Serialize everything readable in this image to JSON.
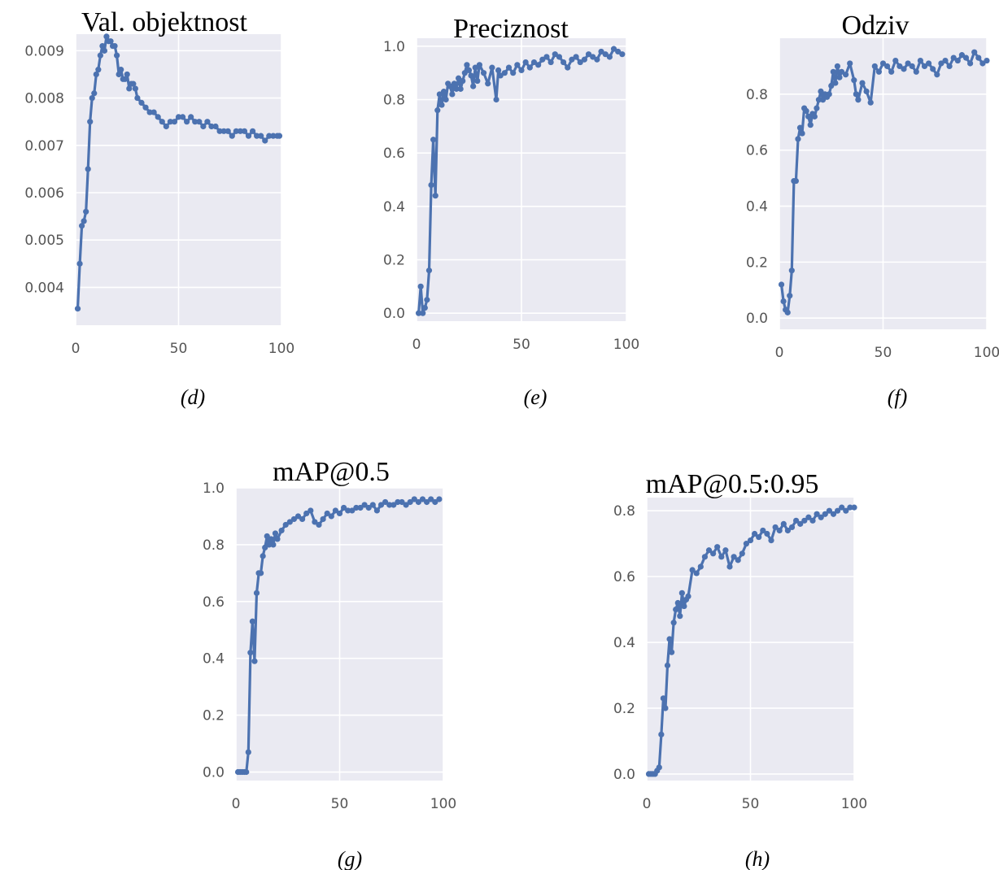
{
  "chart_data": [
    {
      "type": "line",
      "title": "Val. objektnost",
      "caption": "(d)",
      "xlim": [
        0,
        100
      ],
      "ylim": [
        0.0032,
        0.00935
      ],
      "xticks": [
        0,
        50,
        100
      ],
      "xtick_labels": [
        "0",
        "50",
        "100"
      ],
      "yticks": [
        0.004,
        0.005,
        0.006,
        0.007,
        0.008,
        0.009
      ],
      "ytick_labels": [
        "0.004",
        "0.005",
        "0.006",
        "0.007",
        "0.008",
        "0.009"
      ],
      "grid": true,
      "color": "#4c72b0",
      "series": [
        {
          "x": [
            1,
            2,
            3,
            4,
            5,
            6,
            7,
            8,
            9,
            10,
            11,
            12,
            13,
            14,
            15,
            16,
            17,
            18,
            19,
            20,
            21,
            22,
            23,
            24,
            25,
            26,
            27,
            28,
            29,
            30,
            32,
            34,
            36,
            38,
            40,
            42,
            44,
            46,
            48,
            50,
            52,
            54,
            56,
            58,
            60,
            62,
            64,
            66,
            68,
            70,
            72,
            74,
            76,
            78,
            80,
            82,
            84,
            86,
            88,
            90,
            92,
            94,
            96,
            98,
            99
          ],
          "y": [
            0.00355,
            0.0045,
            0.0053,
            0.0054,
            0.0056,
            0.0065,
            0.0075,
            0.008,
            0.0081,
            0.0085,
            0.0086,
            0.0089,
            0.0091,
            0.009,
            0.0093,
            0.0092,
            0.0092,
            0.0091,
            0.0091,
            0.0089,
            0.0085,
            0.0086,
            0.0084,
            0.0084,
            0.0085,
            0.0082,
            0.0083,
            0.0083,
            0.0082,
            0.008,
            0.0079,
            0.0078,
            0.0077,
            0.0077,
            0.0076,
            0.0075,
            0.0074,
            0.0075,
            0.0075,
            0.0076,
            0.0076,
            0.0075,
            0.0076,
            0.0075,
            0.0075,
            0.0074,
            0.0075,
            0.0074,
            0.0074,
            0.0073,
            0.0073,
            0.0073,
            0.0072,
            0.0073,
            0.0073,
            0.0073,
            0.0072,
            0.0073,
            0.0072,
            0.0072,
            0.0071,
            0.0072,
            0.0072,
            0.0072,
            0.0072
          ]
        }
      ]
    },
    {
      "type": "line",
      "title": "Preciznost",
      "caption": "(e)",
      "xlim": [
        0,
        100
      ],
      "ylim": [
        -0.03,
        1.03
      ],
      "xticks": [
        0,
        50,
        100
      ],
      "xtick_labels": [
        "0",
        "50",
        "100"
      ],
      "yticks": [
        0,
        0.2,
        0.4,
        0.6,
        0.8,
        1.0
      ],
      "ytick_labels": [
        "0.0",
        "0.2",
        "0.4",
        "0.6",
        "0.8",
        "1.0"
      ],
      "grid": true,
      "color": "#4c72b0",
      "series": [
        {
          "x": [
            1,
            2,
            3,
            4,
            5,
            6,
            7,
            8,
            9,
            10,
            11,
            12,
            13,
            14,
            15,
            16,
            17,
            18,
            19,
            20,
            21,
            22,
            23,
            24,
            25,
            26,
            27,
            28,
            29,
            30,
            32,
            34,
            36,
            38,
            39,
            40,
            42,
            44,
            46,
            48,
            50,
            52,
            54,
            56,
            58,
            60,
            62,
            64,
            66,
            68,
            70,
            72,
            74,
            76,
            78,
            80,
            82,
            84,
            86,
            88,
            90,
            92,
            94,
            96,
            98
          ],
          "y": [
            0.0,
            0.1,
            0.0,
            0.02,
            0.05,
            0.16,
            0.48,
            0.65,
            0.44,
            0.76,
            0.82,
            0.78,
            0.83,
            0.8,
            0.86,
            0.85,
            0.82,
            0.86,
            0.84,
            0.88,
            0.84,
            0.87,
            0.9,
            0.93,
            0.91,
            0.89,
            0.85,
            0.92,
            0.87,
            0.93,
            0.9,
            0.86,
            0.92,
            0.8,
            0.91,
            0.89,
            0.9,
            0.92,
            0.9,
            0.93,
            0.91,
            0.94,
            0.92,
            0.94,
            0.93,
            0.95,
            0.96,
            0.94,
            0.97,
            0.96,
            0.94,
            0.92,
            0.95,
            0.96,
            0.94,
            0.95,
            0.97,
            0.96,
            0.95,
            0.98,
            0.97,
            0.96,
            0.99,
            0.98,
            0.97
          ]
        }
      ]
    },
    {
      "type": "line",
      "title": "Odziv",
      "caption": "(f)",
      "xlim": [
        0,
        100
      ],
      "ylim": [
        -0.04,
        1.0
      ],
      "xticks": [
        0,
        50,
        100
      ],
      "xtick_labels": [
        "0",
        "50",
        "100"
      ],
      "yticks": [
        0,
        0.2,
        0.4,
        0.6,
        0.8
      ],
      "ytick_labels": [
        "0.0",
        "0.2",
        "0.4",
        "0.6",
        "0.8"
      ],
      "grid": true,
      "color": "#4c72b0",
      "series": [
        {
          "x": [
            1,
            2,
            3,
            4,
            5,
            6,
            7,
            8,
            9,
            10,
            11,
            12,
            13,
            14,
            15,
            16,
            17,
            18,
            19,
            20,
            21,
            22,
            23,
            24,
            25,
            26,
            27,
            28,
            29,
            30,
            32,
            34,
            36,
            37,
            38,
            40,
            42,
            44,
            46,
            48,
            50,
            52,
            54,
            56,
            58,
            60,
            62,
            64,
            66,
            68,
            70,
            72,
            74,
            76,
            78,
            80,
            82,
            84,
            86,
            88,
            90,
            92,
            94,
            96,
            98,
            100
          ],
          "y": [
            0.12,
            0.06,
            0.03,
            0.02,
            0.08,
            0.17,
            0.49,
            0.49,
            0.64,
            0.68,
            0.66,
            0.75,
            0.74,
            0.72,
            0.69,
            0.73,
            0.72,
            0.75,
            0.78,
            0.81,
            0.78,
            0.8,
            0.79,
            0.8,
            0.83,
            0.88,
            0.84,
            0.9,
            0.86,
            0.88,
            0.87,
            0.91,
            0.85,
            0.8,
            0.78,
            0.84,
            0.81,
            0.77,
            0.9,
            0.88,
            0.91,
            0.9,
            0.88,
            0.92,
            0.9,
            0.89,
            0.91,
            0.9,
            0.88,
            0.92,
            0.9,
            0.91,
            0.89,
            0.87,
            0.91,
            0.92,
            0.9,
            0.93,
            0.92,
            0.94,
            0.93,
            0.91,
            0.95,
            0.93,
            0.91,
            0.92
          ]
        }
      ]
    },
    {
      "type": "line",
      "title": "mAP@0.5",
      "caption": "(g)",
      "xlim": [
        0,
        100
      ],
      "ylim": [
        -0.03,
        1.0
      ],
      "xticks": [
        0,
        50,
        100
      ],
      "xtick_labels": [
        "0",
        "50",
        "100"
      ],
      "yticks": [
        0,
        0.2,
        0.4,
        0.6,
        0.8,
        1.0
      ],
      "ytick_labels": [
        "0.0",
        "0.2",
        "0.4",
        "0.6",
        "0.8",
        "1.0"
      ],
      "grid": true,
      "color": "#4c72b0",
      "series": [
        {
          "x": [
            1,
            2,
            3,
            4,
            5,
            6,
            7,
            8,
            9,
            10,
            11,
            12,
            13,
            14,
            15,
            16,
            17,
            18,
            19,
            20,
            22,
            24,
            26,
            28,
            30,
            32,
            34,
            36,
            38,
            40,
            42,
            44,
            46,
            48,
            50,
            52,
            54,
            56,
            58,
            60,
            62,
            64,
            66,
            68,
            70,
            72,
            74,
            76,
            78,
            80,
            82,
            84,
            86,
            88,
            90,
            92,
            94,
            96,
            98
          ],
          "y": [
            0.0,
            0.0,
            0.0,
            0.0,
            0.0,
            0.07,
            0.42,
            0.53,
            0.39,
            0.63,
            0.7,
            0.7,
            0.76,
            0.79,
            0.83,
            0.8,
            0.82,
            0.8,
            0.84,
            0.82,
            0.85,
            0.87,
            0.88,
            0.89,
            0.9,
            0.89,
            0.91,
            0.92,
            0.88,
            0.87,
            0.89,
            0.91,
            0.9,
            0.92,
            0.91,
            0.93,
            0.92,
            0.92,
            0.93,
            0.93,
            0.94,
            0.93,
            0.94,
            0.92,
            0.94,
            0.95,
            0.94,
            0.94,
            0.95,
            0.95,
            0.94,
            0.95,
            0.96,
            0.95,
            0.96,
            0.95,
            0.96,
            0.95,
            0.96
          ]
        }
      ]
    },
    {
      "type": "line",
      "title": "mAP@0.5:0.95",
      "caption": "(h)",
      "xlim": [
        0,
        100
      ],
      "ylim": [
        -0.02,
        0.84
      ],
      "xticks": [
        0,
        50,
        100
      ],
      "xtick_labels": [
        "0",
        "50",
        "100"
      ],
      "yticks": [
        0,
        0.2,
        0.4,
        0.6,
        0.8
      ],
      "ytick_labels": [
        "0.0",
        "0.2",
        "0.4",
        "0.6",
        "0.8"
      ],
      "grid": true,
      "color": "#4c72b0",
      "series": [
        {
          "x": [
            1,
            2,
            3,
            4,
            5,
            6,
            7,
            8,
            9,
            10,
            11,
            12,
            13,
            14,
            15,
            16,
            17,
            18,
            19,
            20,
            22,
            24,
            26,
            28,
            30,
            32,
            34,
            36,
            38,
            40,
            42,
            44,
            46,
            48,
            50,
            52,
            54,
            56,
            58,
            60,
            62,
            64,
            66,
            68,
            70,
            72,
            74,
            76,
            78,
            80,
            82,
            84,
            86,
            88,
            90,
            92,
            94,
            96,
            98,
            100
          ],
          "y": [
            0.0,
            0.0,
            0.0,
            0.0,
            0.01,
            0.02,
            0.12,
            0.23,
            0.2,
            0.33,
            0.41,
            0.37,
            0.46,
            0.5,
            0.52,
            0.48,
            0.55,
            0.51,
            0.53,
            0.54,
            0.62,
            0.61,
            0.63,
            0.66,
            0.68,
            0.67,
            0.69,
            0.66,
            0.68,
            0.63,
            0.66,
            0.65,
            0.67,
            0.7,
            0.71,
            0.73,
            0.72,
            0.74,
            0.73,
            0.71,
            0.75,
            0.74,
            0.76,
            0.74,
            0.75,
            0.77,
            0.76,
            0.77,
            0.78,
            0.77,
            0.79,
            0.78,
            0.79,
            0.8,
            0.79,
            0.8,
            0.81,
            0.8,
            0.81,
            0.81
          ]
        }
      ]
    }
  ]
}
